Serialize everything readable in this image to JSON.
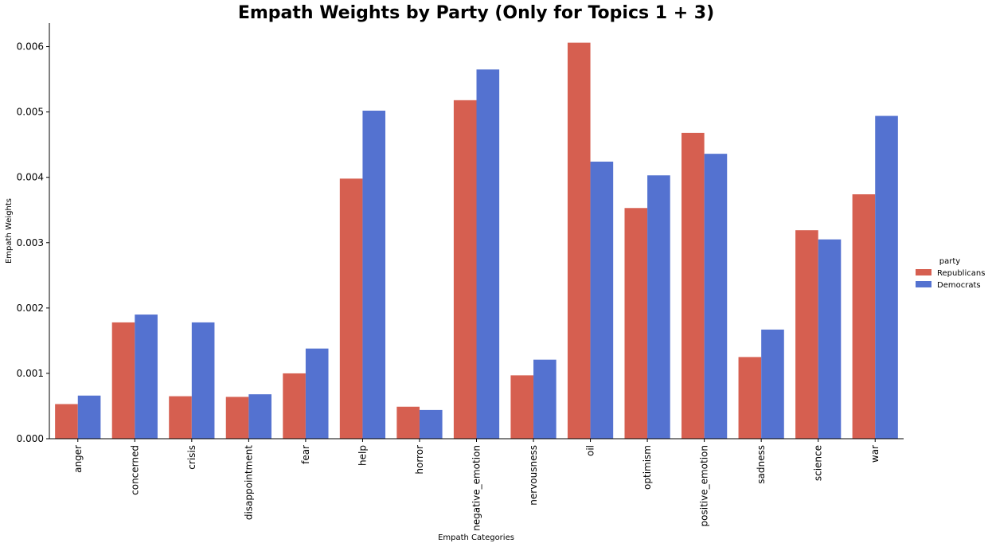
{
  "chart_data": {
    "type": "bar",
    "title": "Empath Weights by Party (Only for Topics 1 + 3)",
    "xlabel": "Empath Categories",
    "ylabel": "Empath Weights",
    "ylim": [
      0,
      0.00636
    ],
    "yticks": [
      "0.000",
      "0.001",
      "0.002",
      "0.003",
      "0.004",
      "0.005",
      "0.006"
    ],
    "categories": [
      "anger",
      "concerned",
      "crisis",
      "disappointment",
      "fear",
      "help",
      "horror",
      "negative_emotion",
      "nervousness",
      "oil",
      "optimism",
      "positive_emotion",
      "sadness",
      "science",
      "war"
    ],
    "series": [
      {
        "name": "Republicans",
        "color": "#d65f50",
        "values": [
          0.00053,
          0.00178,
          0.00065,
          0.00064,
          0.001,
          0.00398,
          0.00049,
          0.00518,
          0.00097,
          0.00606,
          0.00353,
          0.00468,
          0.00125,
          0.00319,
          0.00374
        ]
      },
      {
        "name": "Democrats",
        "color": "#5472d0",
        "values": [
          0.00066,
          0.0019,
          0.00178,
          0.00068,
          0.00138,
          0.00502,
          0.00044,
          0.00565,
          0.00121,
          0.00424,
          0.00403,
          0.00436,
          0.00167,
          0.00305,
          0.00494
        ]
      }
    ],
    "grid": false,
    "legend": {
      "title": "party",
      "placement": "right"
    }
  }
}
